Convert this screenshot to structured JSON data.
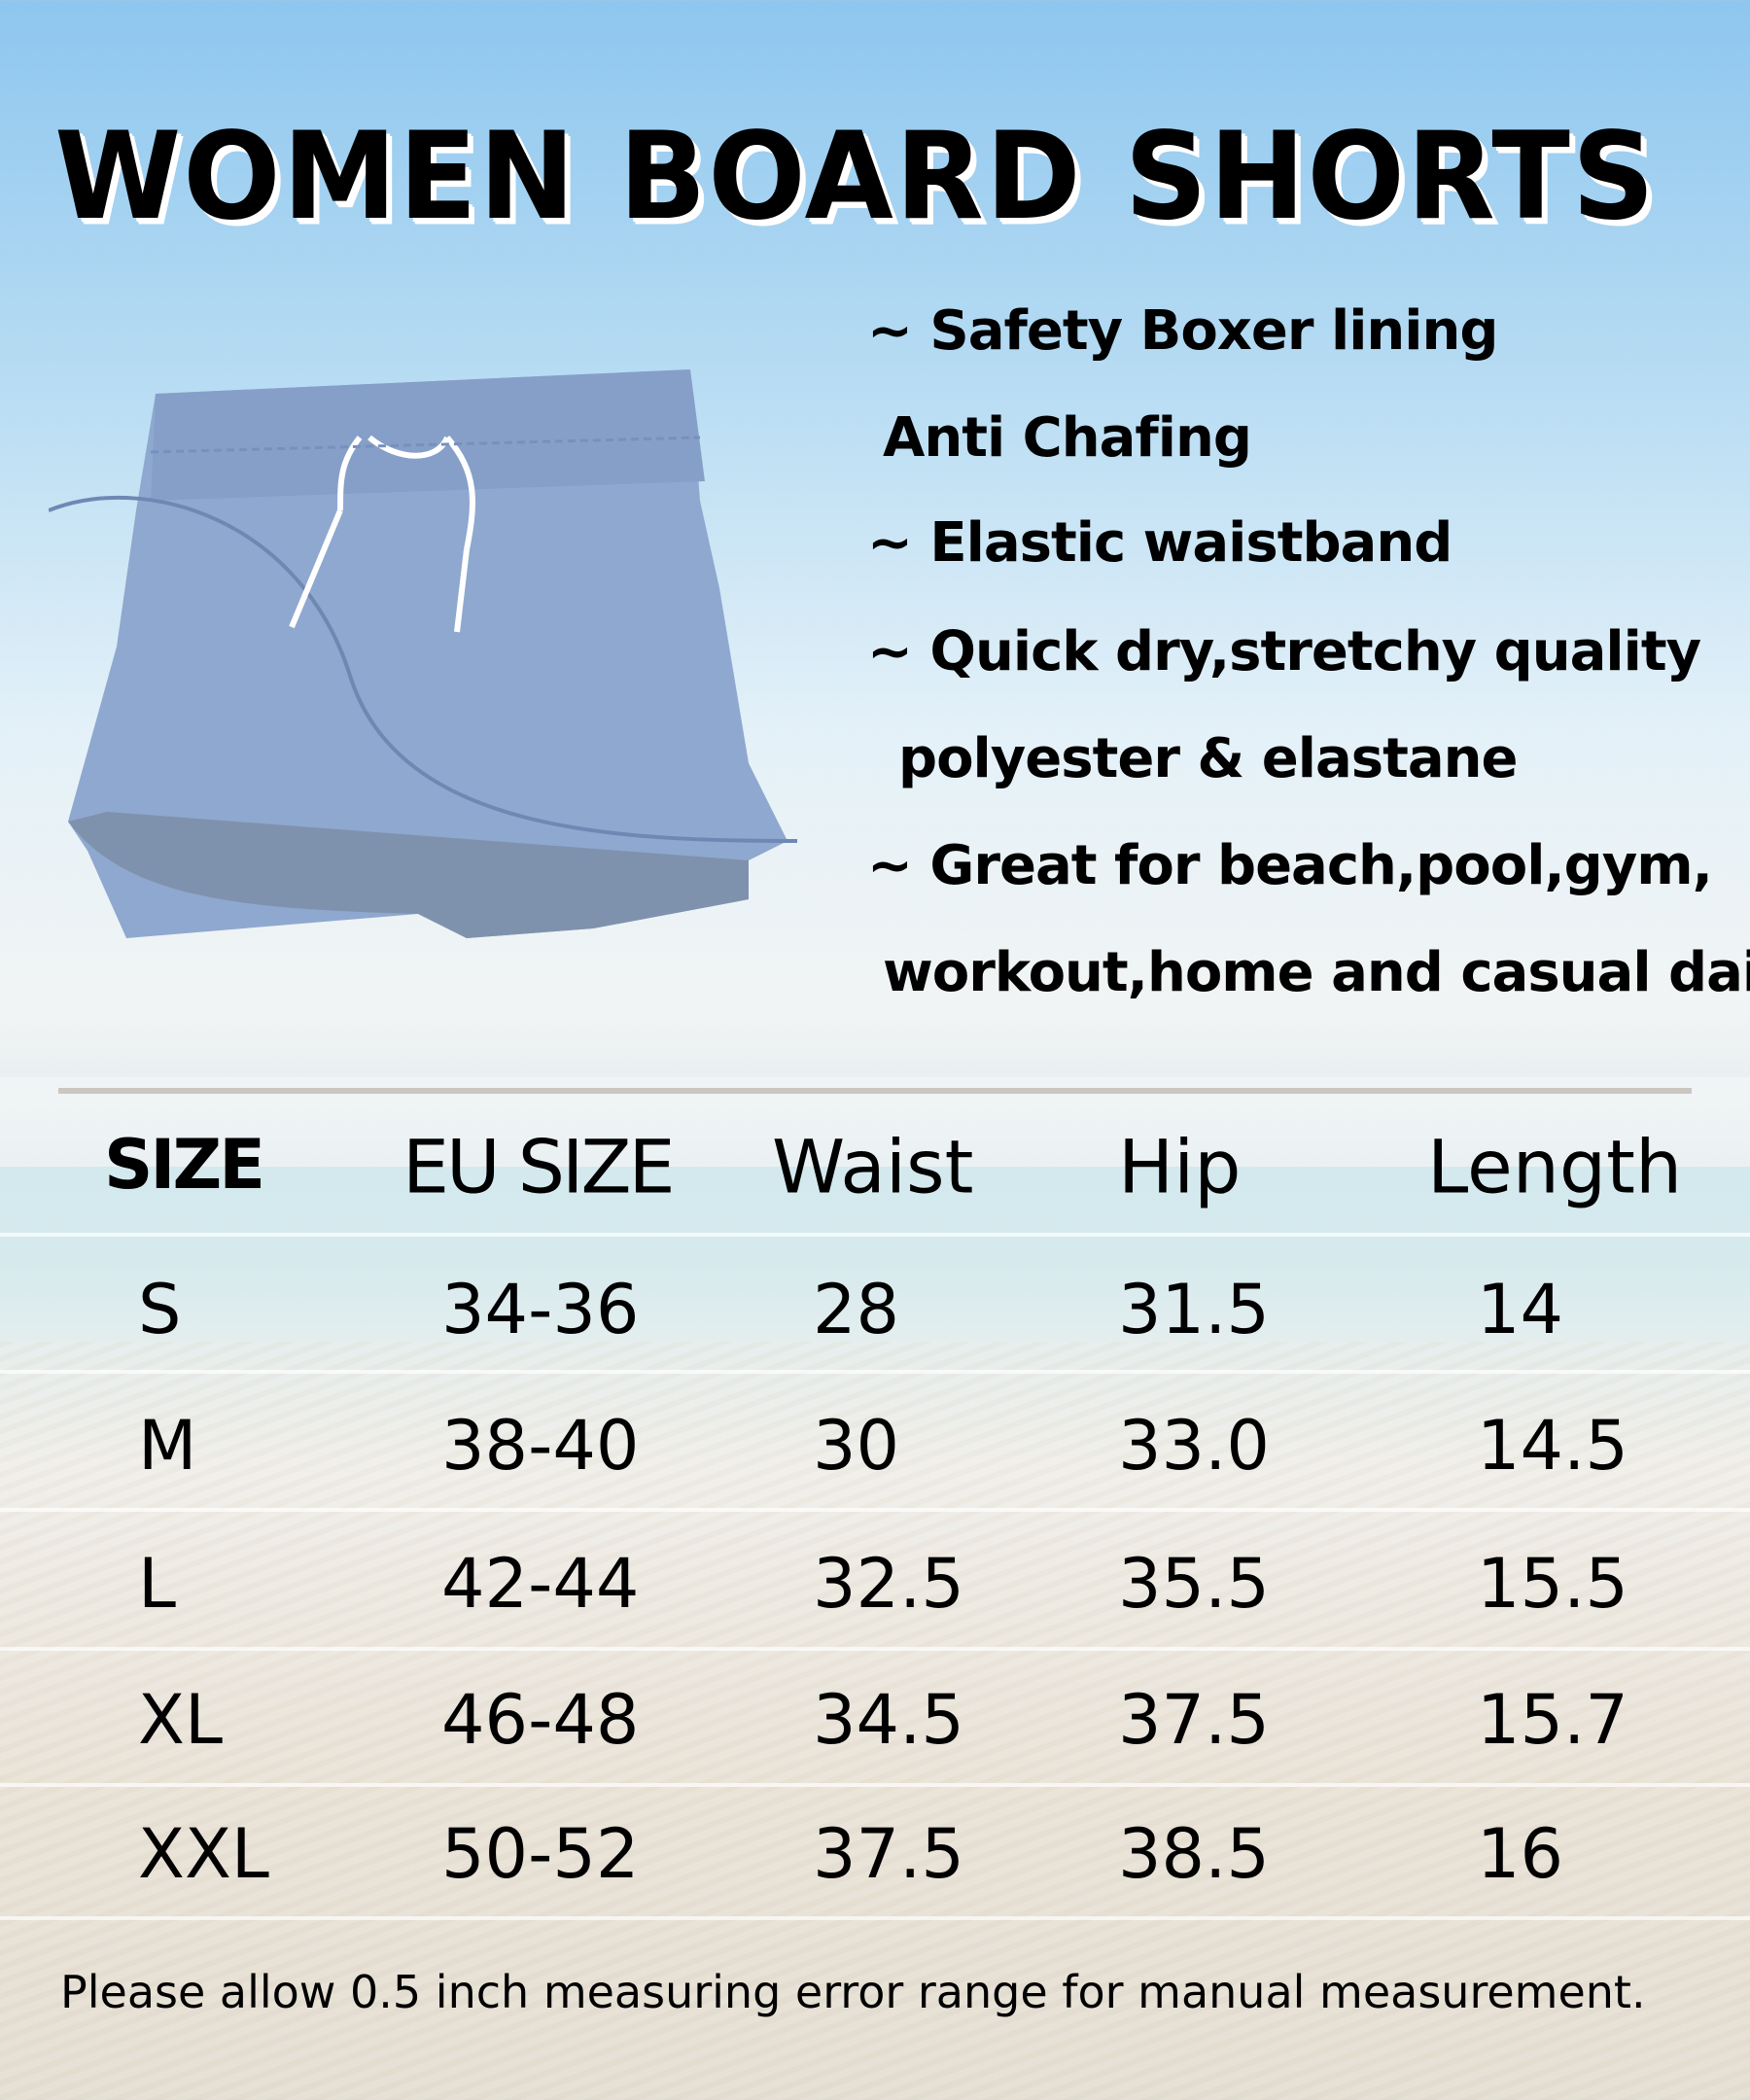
{
  "title": "WOMEN BOARD SHORTS",
  "features": [
    "~ Safety Boxer lining",
    "Anti Chafing",
    "~ Elastic waistband",
    "~ Quick dry,stretchy quality",
    "polyester & elastane",
    "~ Great for beach,pool,gym,",
    "workout,home and casual daily"
  ],
  "product_color": "#8fa8cf",
  "table": {
    "headers": [
      "SIZE",
      "EU SIZE",
      "Waist",
      "Hip",
      "Length"
    ],
    "rows": [
      [
        "S",
        "34-36",
        "28",
        "31.5",
        "14"
      ],
      [
        "M",
        "38-40",
        "30",
        "33.0",
        "14.5"
      ],
      [
        "L",
        "42-44",
        "32.5",
        "35.5",
        "15.5"
      ],
      [
        "XL",
        "46-48",
        "34.5",
        "37.5",
        "15.7"
      ],
      [
        "XXL",
        "50-52",
        "37.5",
        "38.5",
        "16"
      ]
    ]
  },
  "footer_note": "Please allow 0.5 inch measuring error range for manual measurement."
}
